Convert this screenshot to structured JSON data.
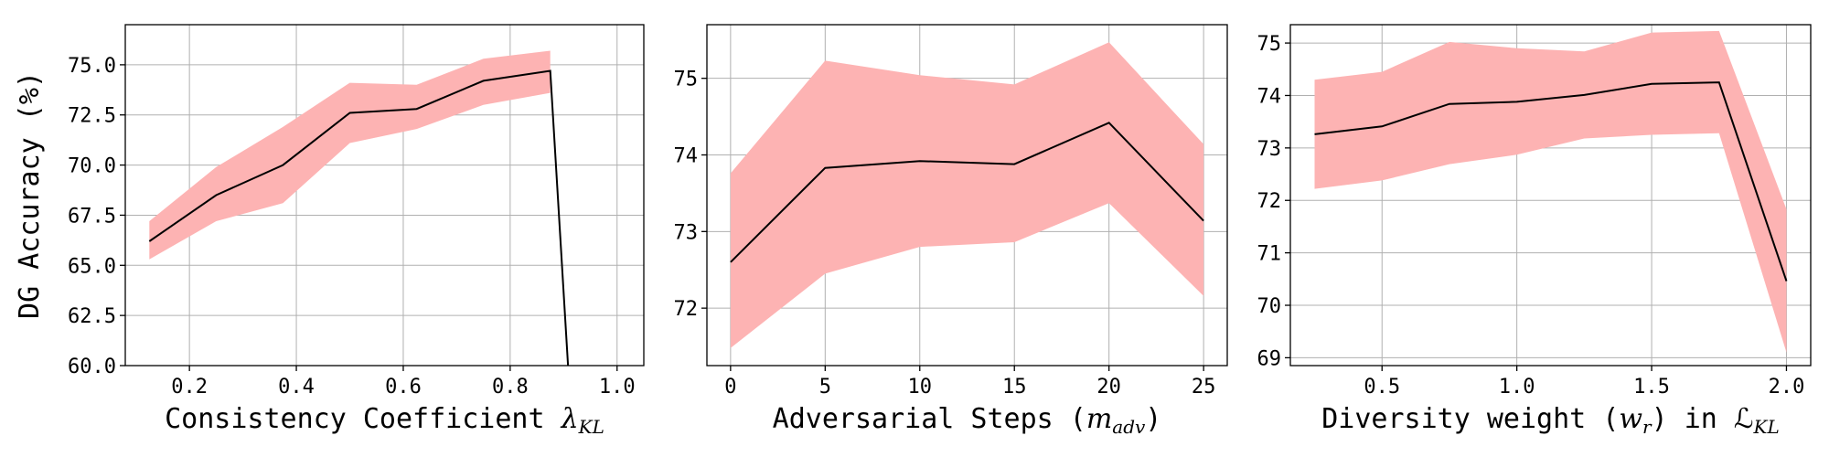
{
  "colors": {
    "band": "#fdb3b3",
    "line": "#000000",
    "grid": "#b0b0b0"
  },
  "chart_data": [
    {
      "type": "line",
      "ylabel": "DG Accuracy (%)",
      "xlabel_text": "Consistency Coefficient ",
      "xlabel_math": "λ",
      "xlabel_sub": "KL",
      "xlabel_suffix": "",
      "x": [
        0.125,
        0.25,
        0.375,
        0.5,
        0.625,
        0.75,
        0.875,
        0.91
      ],
      "y": [
        66.2,
        68.5,
        70.0,
        72.6,
        72.8,
        74.2,
        74.7,
        59.2
      ],
      "band_lower": [
        65.3,
        67.2,
        68.1,
        71.1,
        71.8,
        73.0,
        73.6,
        null
      ],
      "band_upper": [
        67.2,
        69.9,
        71.9,
        74.1,
        74.0,
        75.3,
        75.7,
        null
      ],
      "xlim": [
        0.08,
        1.05
      ],
      "ylim": [
        60.0,
        77.0
      ],
      "xticks": [
        0.2,
        0.4,
        0.6,
        0.8,
        1.0
      ],
      "xtick_labels": [
        "0.2",
        "0.4",
        "0.6",
        "0.8",
        "1.0"
      ],
      "yticks": [
        60.0,
        62.5,
        65.0,
        67.5,
        70.0,
        72.5,
        75.0
      ],
      "ytick_labels": [
        "60.0",
        "62.5",
        "65.0",
        "67.5",
        "70.0",
        "72.5",
        "75.0"
      ],
      "grid": true
    },
    {
      "type": "line",
      "xlabel_text": "Adversarial Steps (",
      "xlabel_math": "m",
      "xlabel_sub": "adv",
      "xlabel_suffix": ")",
      "x": [
        0,
        5,
        10,
        15,
        20,
        25
      ],
      "y": [
        72.6,
        73.83,
        73.92,
        73.88,
        74.42,
        73.14
      ],
      "band_lower": [
        71.48,
        72.45,
        72.8,
        72.86,
        73.37,
        72.16
      ],
      "band_upper": [
        73.76,
        75.23,
        75.04,
        74.92,
        75.47,
        74.14
      ],
      "xlim": [
        -1.25,
        26.25
      ],
      "ylim": [
        71.25,
        75.7
      ],
      "xticks": [
        0,
        5,
        10,
        15,
        20,
        25
      ],
      "xtick_labels": [
        "0",
        "5",
        "10",
        "15",
        "20",
        "25"
      ],
      "yticks": [
        72,
        73,
        74,
        75
      ],
      "ytick_labels": [
        "72",
        "73",
        "74",
        "75"
      ],
      "grid": true
    },
    {
      "type": "line",
      "xlabel_text": "Diversity weight (",
      "xlabel_math": "w",
      "xlabel_sub": "r",
      "xlabel_suffix": ") in ℒ",
      "xlabel_sub2": "KL",
      "x": [
        0.25,
        0.5,
        0.75,
        1.0,
        1.25,
        1.5,
        1.75,
        2.0
      ],
      "y": [
        73.26,
        73.41,
        73.84,
        73.88,
        74.01,
        74.22,
        74.25,
        70.46
      ],
      "band_lower": [
        72.22,
        72.38,
        72.69,
        72.87,
        73.18,
        73.25,
        73.28,
        69.1
      ],
      "band_upper": [
        74.3,
        74.45,
        75.02,
        74.9,
        74.84,
        75.2,
        75.23,
        71.83
      ],
      "xlim": [
        0.16,
        2.09
      ],
      "ylim": [
        68.85,
        75.35
      ],
      "xticks": [
        0.5,
        1.0,
        1.5,
        2.0
      ],
      "xtick_labels": [
        "0.5",
        "1.0",
        "1.5",
        "2.0"
      ],
      "yticks": [
        69,
        70,
        71,
        72,
        73,
        74,
        75
      ],
      "ytick_labels": [
        "69",
        "70",
        "71",
        "72",
        "73",
        "74",
        "75"
      ],
      "grid": true
    }
  ]
}
